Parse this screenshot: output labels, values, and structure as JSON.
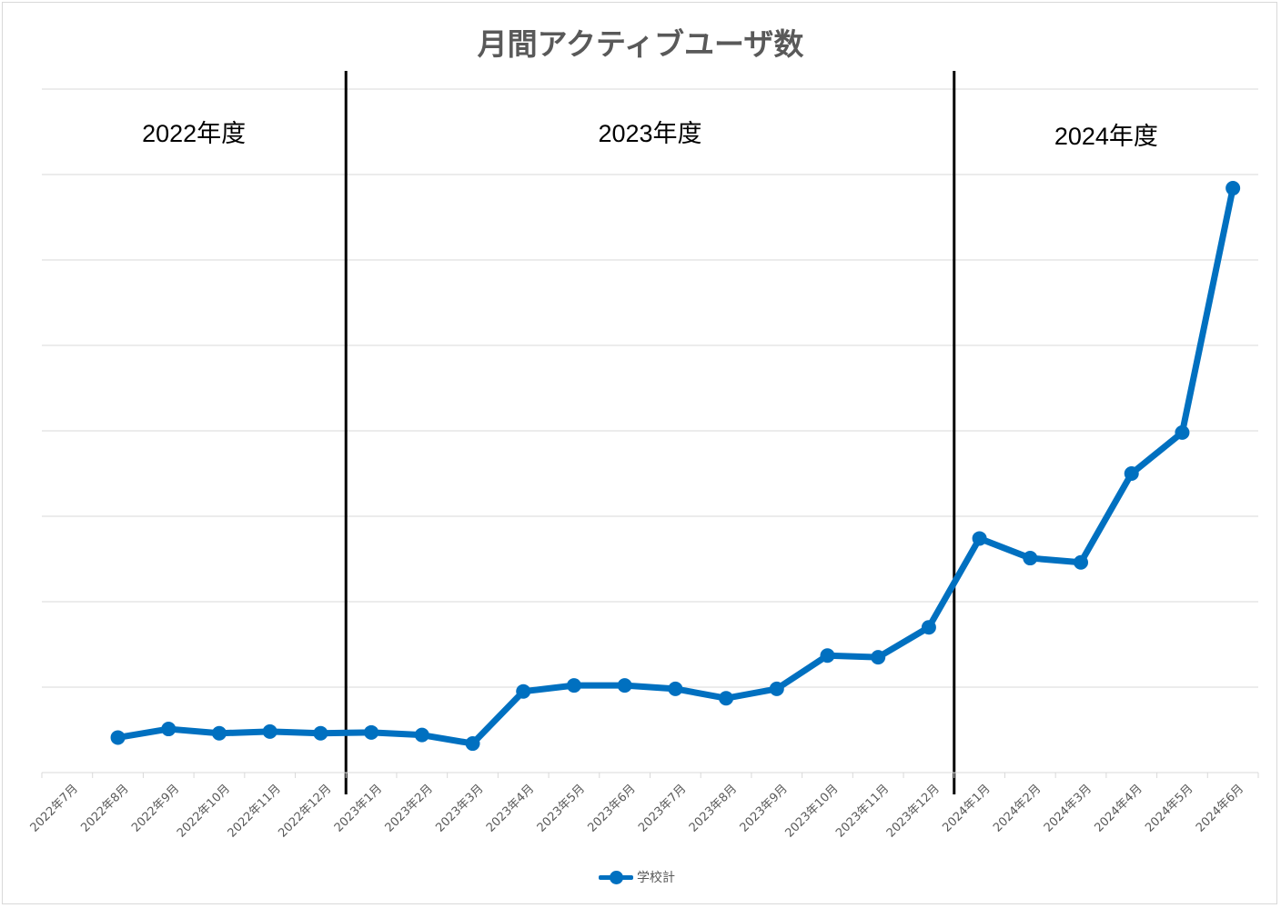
{
  "chart_data": {
    "type": "line",
    "title": "月間アクティブユーザ数",
    "categories": [
      "2022年7月",
      "2022年8月",
      "2022年9月",
      "2022年10月",
      "2022年11月",
      "2022年12月",
      "2023年1月",
      "2023年2月",
      "2023年3月",
      "2023年4月",
      "2023年5月",
      "2023年6月",
      "2023年7月",
      "2023年8月",
      "2023年9月",
      "2023年10月",
      "2023年11月",
      "2023年12月",
      "2024年1月",
      "2024年2月",
      "2024年3月",
      "2024年4月",
      "2024年5月",
      "2024年6月"
    ],
    "series": [
      {
        "name": "学校計",
        "color": "#0070c0",
        "values": [
          null,
          0.41,
          0.51,
          0.46,
          0.48,
          0.46,
          0.47,
          0.44,
          0.34,
          0.95,
          1.02,
          1.02,
          0.98,
          0.87,
          0.98,
          1.37,
          1.35,
          1.7,
          2.74,
          2.51,
          2.46,
          3.5,
          3.98,
          6.84
        ]
      }
    ],
    "ylim": [
      0,
      8
    ],
    "y_gridlines": 8,
    "y_tick_labels_shown": false,
    "grid": true,
    "legend": "bottom",
    "fiscal_years": [
      {
        "label": "2022年度",
        "start_index": 0
      },
      {
        "label": "2023年度",
        "start_index": 6
      },
      {
        "label": "2024年度",
        "start_index": 18
      }
    ],
    "dividers_after_index": [
      5,
      17
    ]
  }
}
